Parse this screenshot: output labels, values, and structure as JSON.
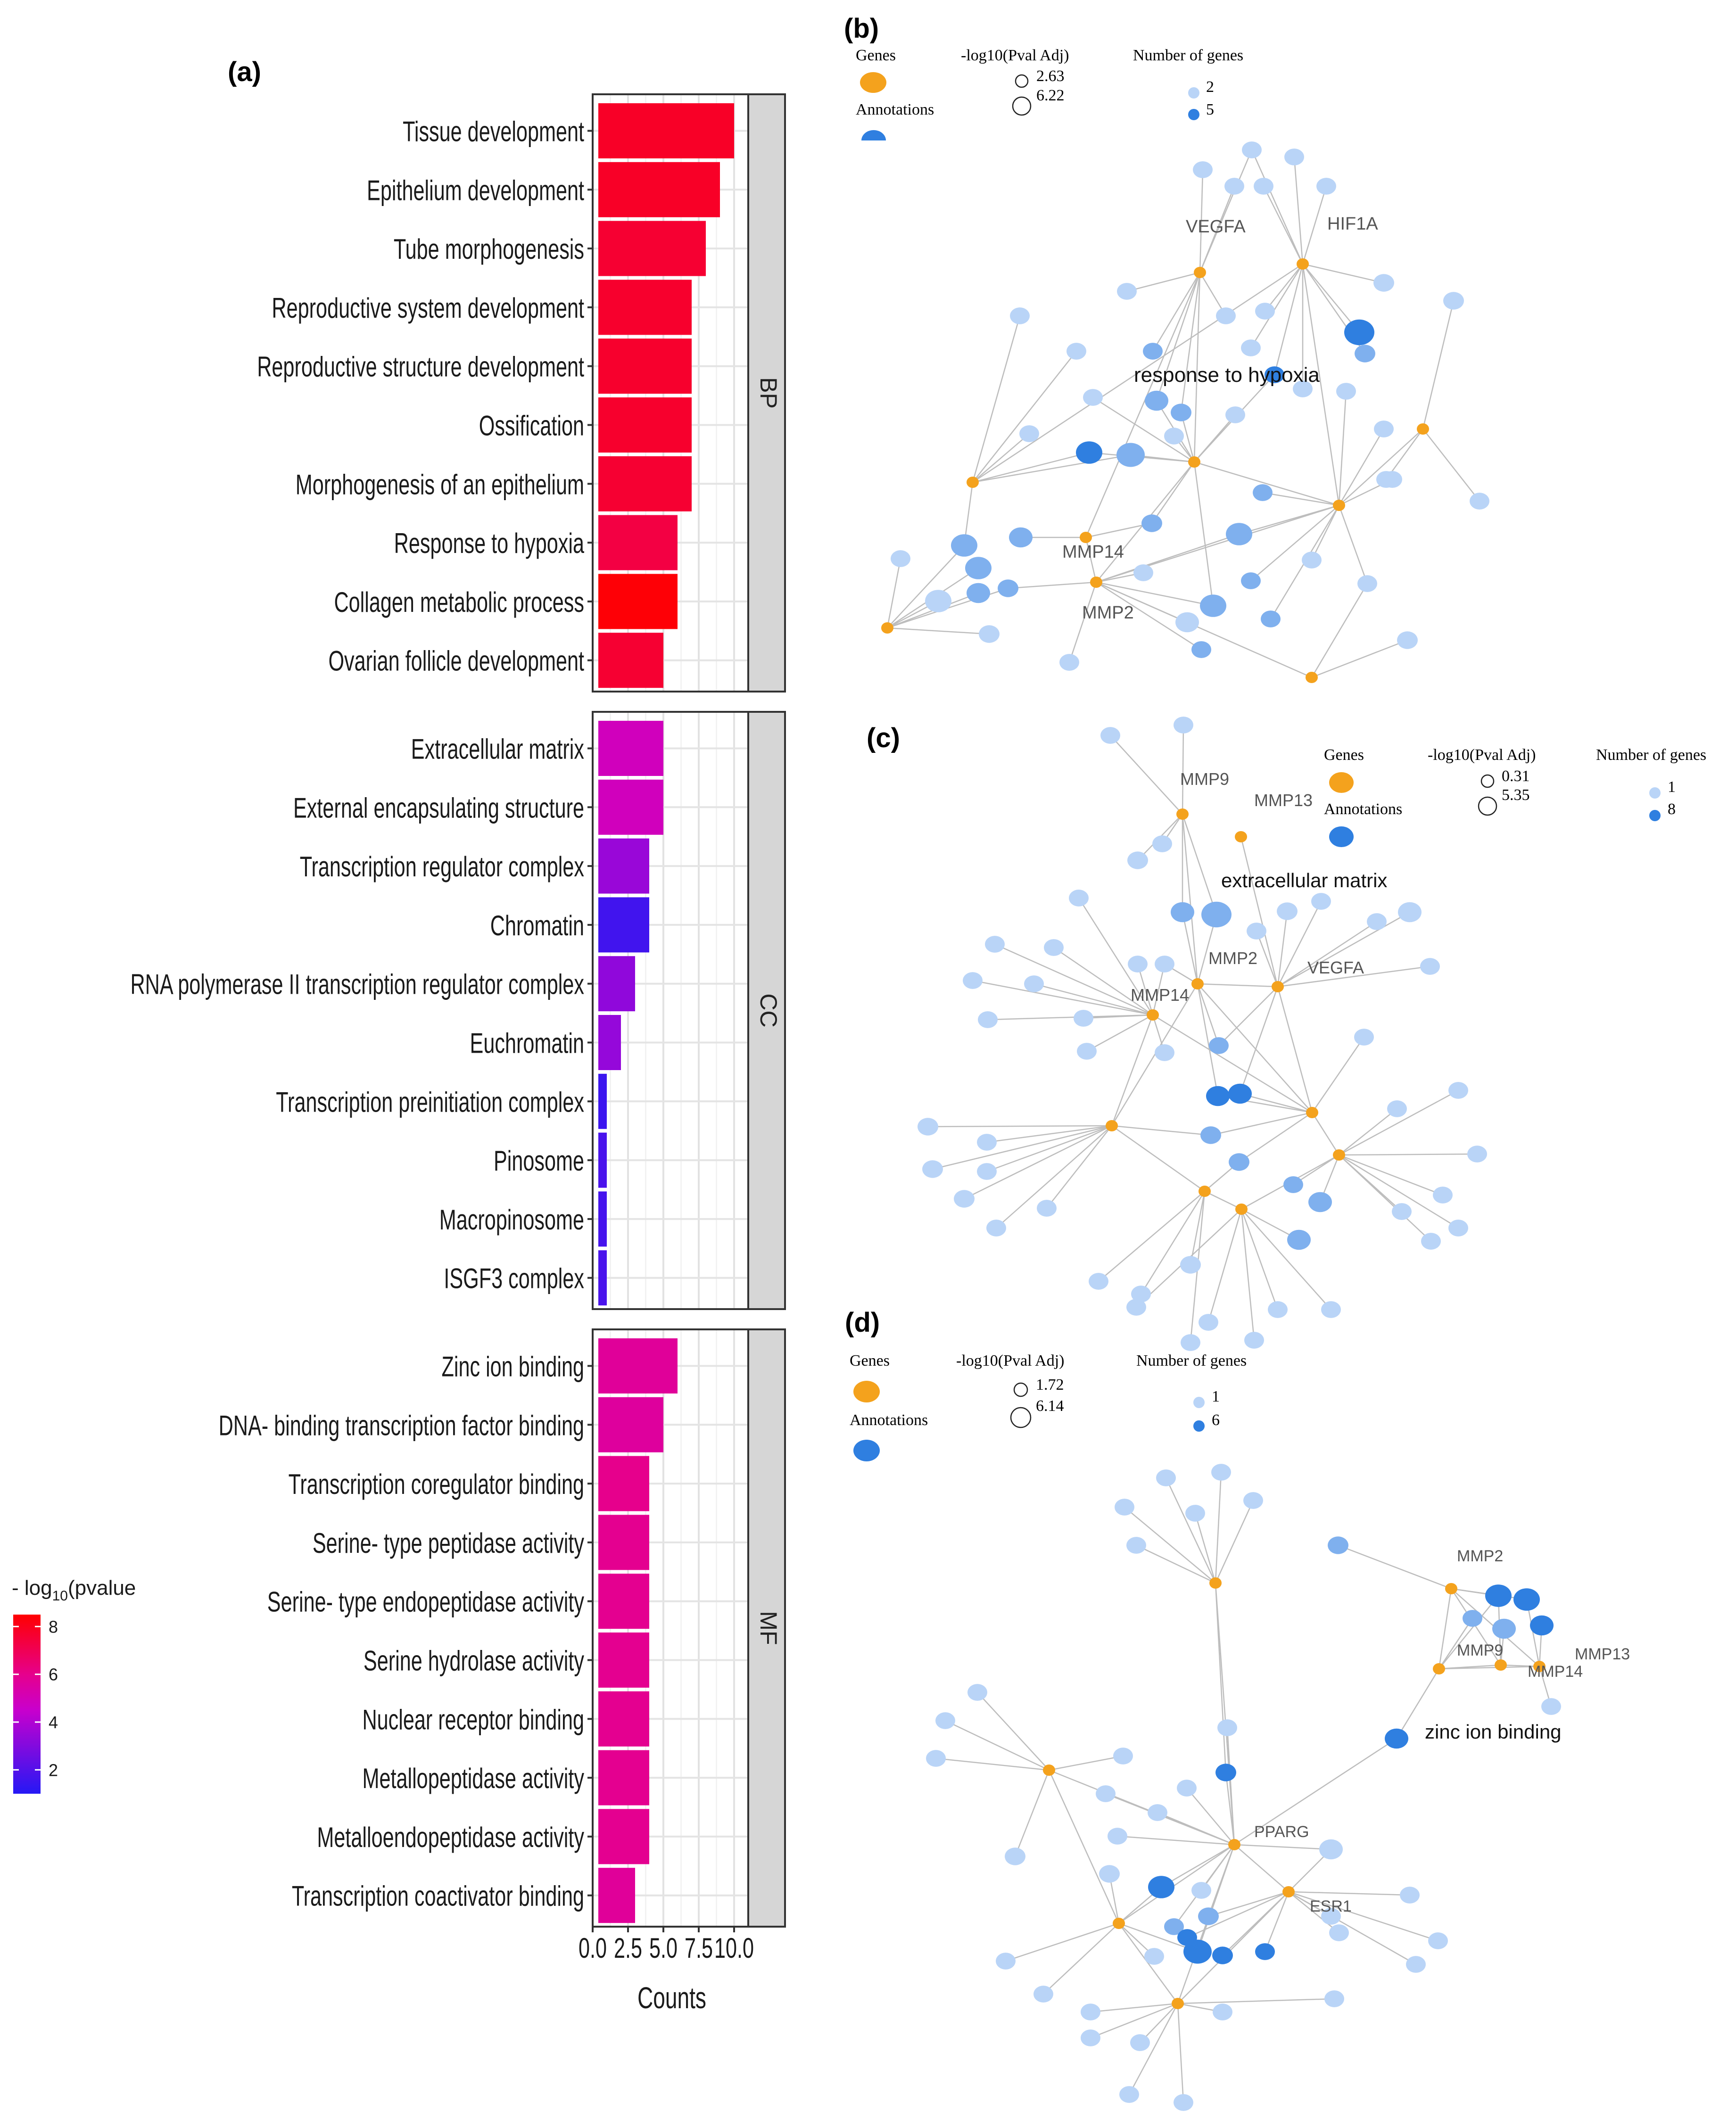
{
  "panel_labels": {
    "a": "(a)",
    "b": "(b)",
    "c": "(c)",
    "d": "(d)"
  },
  "colors": {
    "gene": "#f4a21d",
    "annotation_dark": "#2f7fe0",
    "annotation_light": "#b9d4f7",
    "edge": "#bdbdbd",
    "strip_fill": "#d6d6d6",
    "grid": "#ececec"
  },
  "chart_data": [
    {
      "type": "bar",
      "orientation": "horizontal",
      "facet_labels": [
        "BP",
        "CC",
        "MF"
      ],
      "xlabel": "Counts",
      "xticks": [
        "0.0",
        "2.5",
        "5.0",
        "7.5",
        "10.0"
      ],
      "xlim": [
        0,
        11
      ],
      "legend": {
        "title_prefix": "- log",
        "title_sub": "10",
        "title_suffix": "(pvalue",
        "ticks": [
          "8",
          "6",
          "4",
          "2"
        ],
        "range": [
          1,
          8.5
        ],
        "position": "left"
      },
      "facets": [
        {
          "name": "BP",
          "categories": [
            "Tissue development",
            "Epithelium development",
            "Tube morphogenesis",
            "Reproductive system development",
            "Reproductive structure development",
            "Ossification",
            "Morphogenesis of an epithelium",
            "Response to hypoxia",
            "Collagen metabolic process",
            "Ovarian follicle development"
          ],
          "values": [
            10,
            9,
            8,
            7,
            7,
            7,
            7,
            6,
            6,
            5
          ],
          "neglog10p": [
            7.8,
            7.8,
            7.6,
            7.7,
            7.7,
            7.7,
            7.6,
            7.3,
            8.4,
            7.6
          ]
        },
        {
          "name": "CC",
          "categories": [
            "Extracellular matrix",
            "External encapsulating structure",
            "Transcription regulator complex",
            "Chromatin",
            "RNA polymerase II transcription regulator complex",
            "Euchromatin",
            "Transcription preinitiation complex",
            "Pinosome",
            "Macropinosome",
            "ISGF3 complex"
          ],
          "values": [
            5,
            5,
            4,
            4,
            3,
            2,
            1,
            1,
            1,
            1
          ],
          "neglog10p": [
            4.9,
            4.9,
            3.5,
            1.6,
            3.3,
            3.4,
            1.5,
            1.8,
            1.7,
            1.8
          ]
        },
        {
          "name": "MF",
          "categories": [
            "Zinc ion binding",
            "DNA- binding transcription factor binding",
            "Transcription coregulator binding",
            "Serine- type peptidase activity",
            "Serine- type endopeptidase activity",
            "Serine hydrolase activity",
            "Nuclear receptor binding",
            "Metallopeptidase activity",
            "Metalloendopeptidase activity",
            "Transcription coactivator binding"
          ],
          "values": [
            6,
            5,
            4,
            4,
            4,
            4,
            4,
            4,
            4,
            3
          ],
          "neglog10p": [
            5.7,
            5.6,
            6.0,
            5.9,
            5.9,
            5.9,
            5.9,
            5.9,
            5.9,
            5.7
          ]
        }
      ]
    },
    {
      "type": "network",
      "panel": "b",
      "legend": {
        "genes_label": "Genes",
        "annotations_label": "Annotations",
        "pval_title": "-log10(Pval Adj)",
        "pval_values": [
          "2.63",
          "6.22"
        ],
        "count_title": "Number of genes",
        "count_values": [
          "2",
          "5"
        ]
      },
      "genes": [
        "VEGFA",
        "HIF1A",
        "MMP14",
        "MMP2"
      ],
      "focus_annotation": "response to hypoxia"
    },
    {
      "type": "network",
      "panel": "c",
      "legend": {
        "genes_label": "Genes",
        "annotations_label": "Annotations",
        "pval_title": "-log10(Pval Adj)",
        "pval_values": [
          "0.31",
          "5.35"
        ],
        "count_title": "Number of genes",
        "count_values": [
          "1",
          "8"
        ]
      },
      "genes": [
        "MMP9",
        "MMP13",
        "MMP2",
        "VEGFA",
        "MMP14"
      ],
      "focus_annotation": "extracellular matrix"
    },
    {
      "type": "network",
      "panel": "d",
      "legend": {
        "genes_label": "Genes",
        "annotations_label": "Annotations",
        "pval_title": "-log10(Pval Adj)",
        "pval_values": [
          "1.72",
          "6.14"
        ],
        "count_title": "Number of genes",
        "count_values": [
          "1",
          "6"
        ]
      },
      "genes": [
        "MMP2",
        "MMP9",
        "MMP13",
        "MMP14",
        "PPARG",
        "ESR1"
      ],
      "focus_annotation": "zinc ion binding"
    }
  ]
}
